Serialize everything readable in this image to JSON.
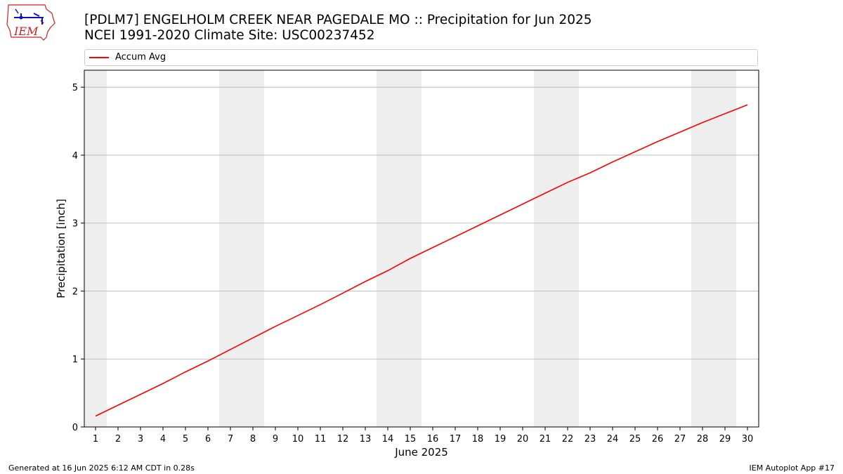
{
  "header": {
    "title_line1": "[PDLM7] ENGELHOLM CREEK NEAR PAGEDALE  MO :: Precipitation for Jun 2025",
    "title_line2": "NCEI 1991-2020 Climate Site: USC00237452",
    "logo_text": "IEM"
  },
  "footer": {
    "left": "Generated at 16 Jun 2025 6:12 AM CDT in 0.28s",
    "right": "IEM Autoplot App #17"
  },
  "colors": {
    "line": "#ff0000",
    "weekend_shade": "#eeeeee",
    "grid": "#b0b0b0",
    "logo_red": "#cc2222",
    "logo_blue": "#1010cc"
  },
  "chart_data": {
    "type": "line",
    "title": "[PDLM7] ENGELHOLM CREEK NEAR PAGEDALE  MO :: Precipitation for Jun 2025",
    "subtitle": "NCEI 1991-2020 Climate Site: USC00237452",
    "xlabel": "June 2025",
    "ylabel": "Precipitation [inch]",
    "xlim": [
      0.5,
      30.5
    ],
    "ylim": [
      0,
      5.25
    ],
    "x_ticks": [
      1,
      2,
      3,
      4,
      5,
      6,
      7,
      8,
      9,
      10,
      11,
      12,
      13,
      14,
      15,
      16,
      17,
      18,
      19,
      20,
      21,
      22,
      23,
      24,
      25,
      26,
      27,
      28,
      29,
      30
    ],
    "y_ticks": [
      0,
      1,
      2,
      3,
      4,
      5
    ],
    "grid": "horizontal",
    "legend_position": "top",
    "weekend_shading_days": [
      [
        1,
        1
      ],
      [
        7,
        8
      ],
      [
        14,
        15
      ],
      [
        21,
        22
      ],
      [
        28,
        29
      ]
    ],
    "series": [
      {
        "name": "Accum Avg",
        "x": [
          1,
          2,
          3,
          4,
          5,
          6,
          7,
          8,
          9,
          10,
          11,
          12,
          13,
          14,
          15,
          16,
          17,
          18,
          19,
          20,
          21,
          22,
          23,
          24,
          25,
          26,
          27,
          28,
          29,
          30
        ],
        "values": [
          0.16,
          0.32,
          0.48,
          0.64,
          0.81,
          0.97,
          1.14,
          1.31,
          1.48,
          1.64,
          1.8,
          1.97,
          2.14,
          2.3,
          2.48,
          2.64,
          2.8,
          2.96,
          3.12,
          3.28,
          3.44,
          3.6,
          3.74,
          3.9,
          4.05,
          4.2,
          4.34,
          4.48,
          4.61,
          4.74
        ]
      }
    ]
  }
}
